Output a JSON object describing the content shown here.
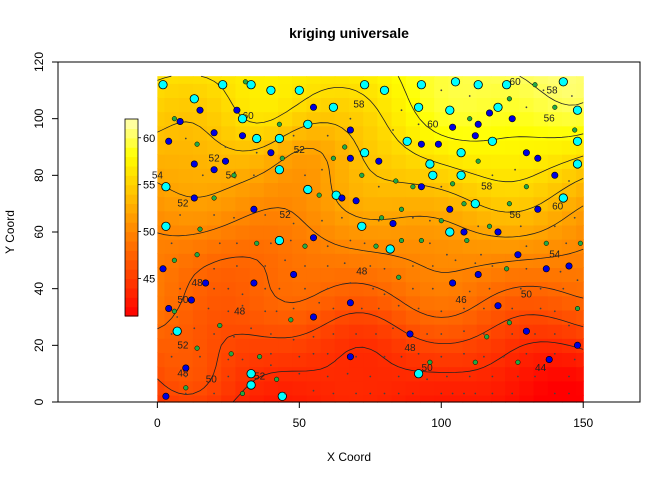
{
  "chart_data": {
    "type": "heatmap",
    "title": "kriging universale",
    "xlabel": "X Coord",
    "ylabel": "Y Coord",
    "xlim": [
      -35,
      170
    ],
    "ylim": [
      0,
      120
    ],
    "x_ticks": [
      "0",
      "50",
      "100",
      "150"
    ],
    "x_tick_values": [
      0,
      50,
      100,
      150
    ],
    "y_ticks": [
      "0",
      "20",
      "40",
      "60",
      "80",
      "100",
      "120"
    ],
    "y_tick_values": [
      0,
      20,
      40,
      60,
      80,
      100,
      120
    ],
    "grid_extent": {
      "x": [
        0,
        150
      ],
      "y": [
        0,
        115
      ]
    },
    "grid_step": 5,
    "value_range": [
      41,
      63
    ],
    "color_scale": {
      "name": "heat",
      "low": "#ff0000",
      "high": "#ffffe6"
    },
    "legend": {
      "position": "left",
      "ticks": [
        "45",
        "50",
        "55",
        "60"
      ],
      "tick_values": [
        45,
        50,
        55,
        60
      ],
      "range": [
        41,
        62
      ]
    },
    "contour_labels": [
      {
        "text": "44",
        "x": 135,
        "y": 12
      },
      {
        "text": "46",
        "x": 107,
        "y": 36
      },
      {
        "text": "48",
        "x": 72,
        "y": 46
      },
      {
        "text": "48",
        "x": 29,
        "y": 32
      },
      {
        "text": "48",
        "x": 89,
        "y": 19
      },
      {
        "text": "48",
        "x": 9,
        "y": 10
      },
      {
        "text": "48",
        "x": 14,
        "y": 42
      },
      {
        "text": "50",
        "x": 9,
        "y": 36
      },
      {
        "text": "50",
        "x": 130,
        "y": 38
      },
      {
        "text": "50",
        "x": 95,
        "y": 12
      },
      {
        "text": "50",
        "x": 19,
        "y": 8
      },
      {
        "text": "52",
        "x": 9,
        "y": 20
      },
      {
        "text": "52",
        "x": 36,
        "y": 9
      },
      {
        "text": "52",
        "x": 9,
        "y": 70
      },
      {
        "text": "52",
        "x": 45,
        "y": 66
      },
      {
        "text": "52",
        "x": 20,
        "y": 86
      },
      {
        "text": "52",
        "x": 50,
        "y": 89
      },
      {
        "text": "54",
        "x": 26,
        "y": 80
      },
      {
        "text": "54",
        "x": 0,
        "y": 80
      },
      {
        "text": "54",
        "x": 140,
        "y": 52
      },
      {
        "text": "56",
        "x": 126,
        "y": 66
      },
      {
        "text": "58",
        "x": 116,
        "y": 76
      },
      {
        "text": "58",
        "x": 71,
        "y": 105
      },
      {
        "text": "58",
        "x": 139,
        "y": 110
      },
      {
        "text": "60",
        "x": 97,
        "y": 98
      },
      {
        "text": "60",
        "x": 141,
        "y": 69
      },
      {
        "text": "60",
        "x": 32,
        "y": 101
      },
      {
        "text": "60",
        "x": 126,
        "y": 113
      },
      {
        "text": "56",
        "x": 138,
        "y": 100
      }
    ],
    "points": {
      "cyan": [
        [
          2,
          112
        ],
        [
          13,
          107
        ],
        [
          23,
          112
        ],
        [
          33,
          112
        ],
        [
          40,
          110
        ],
        [
          50,
          110
        ],
        [
          53,
          98
        ],
        [
          30,
          100
        ],
        [
          35,
          93
        ],
        [
          43,
          93
        ],
        [
          62,
          104
        ],
        [
          73,
          112
        ],
        [
          80,
          110
        ],
        [
          93,
          112
        ],
        [
          105,
          113
        ],
        [
          113,
          112
        ],
        [
          123,
          112
        ],
        [
          143,
          113
        ],
        [
          148,
          103
        ],
        [
          148,
          92
        ],
        [
          148,
          84
        ],
        [
          143,
          72
        ],
        [
          120,
          104
        ],
        [
          103,
          103
        ],
        [
          92,
          104
        ],
        [
          88,
          92
        ],
        [
          107,
          88
        ],
        [
          107,
          80
        ],
        [
          96,
          84
        ],
        [
          97,
          80
        ],
        [
          73,
          88
        ],
        [
          63,
          73
        ],
        [
          53,
          75
        ],
        [
          43,
          82
        ],
        [
          43,
          57
        ],
        [
          3,
          76
        ],
        [
          7,
          25
        ],
        [
          33,
          6
        ],
        [
          92,
          10
        ],
        [
          72,
          62
        ],
        [
          82,
          54
        ],
        [
          103,
          60
        ],
        [
          112,
          70
        ],
        [
          118,
          92
        ],
        [
          3,
          62
        ],
        [
          33,
          10
        ],
        [
          44,
          2
        ]
      ],
      "blue": [
        [
          4,
          92
        ],
        [
          8,
          99
        ],
        [
          15,
          103
        ],
        [
          20,
          95
        ],
        [
          28,
          103
        ],
        [
          55,
          104
        ],
        [
          68,
          96
        ],
        [
          93,
          91
        ],
        [
          99,
          91
        ],
        [
          104,
          97
        ],
        [
          113,
          98
        ],
        [
          117,
          102
        ],
        [
          112,
          94
        ],
        [
          125,
          100
        ],
        [
          130,
          88
        ],
        [
          134,
          86
        ],
        [
          140,
          80
        ],
        [
          134,
          68
        ],
        [
          120,
          60
        ],
        [
          137,
          47
        ],
        [
          127,
          52
        ],
        [
          145,
          48
        ],
        [
          108,
          60
        ],
        [
          103,
          68
        ],
        [
          83,
          63
        ],
        [
          65,
          72
        ],
        [
          55,
          58
        ],
        [
          48,
          45
        ],
        [
          34,
          42
        ],
        [
          2,
          47
        ],
        [
          4,
          33
        ],
        [
          3,
          2
        ],
        [
          10,
          12
        ],
        [
          12,
          36
        ],
        [
          17,
          42
        ],
        [
          34,
          68
        ],
        [
          55,
          30
        ],
        [
          68,
          35
        ],
        [
          68,
          16
        ],
        [
          89,
          24
        ],
        [
          104,
          42
        ],
        [
          113,
          45
        ],
        [
          120,
          34
        ],
        [
          130,
          25
        ],
        [
          148,
          20
        ],
        [
          138,
          15
        ],
        [
          30,
          94
        ],
        [
          13,
          84
        ],
        [
          20,
          82
        ],
        [
          24,
          85
        ],
        [
          40,
          88
        ],
        [
          13,
          72
        ],
        [
          93,
          76
        ],
        [
          78,
          85
        ],
        [
          70,
          71
        ],
        [
          68,
          86
        ]
      ],
      "green": [
        [
          6,
          100
        ],
        [
          31,
          113
        ],
        [
          43,
          98
        ],
        [
          44,
          86
        ],
        [
          62,
          86
        ],
        [
          66,
          90
        ],
        [
          72,
          80
        ],
        [
          84,
          78
        ],
        [
          90,
          76
        ],
        [
          104,
          77
        ],
        [
          113,
          85
        ],
        [
          110,
          100
        ],
        [
          124,
          107
        ],
        [
          133,
          112
        ],
        [
          140,
          104
        ],
        [
          147,
          96
        ],
        [
          130,
          76
        ],
        [
          124,
          70
        ],
        [
          117,
          62
        ],
        [
          108,
          70
        ],
        [
          100,
          64
        ],
        [
          86,
          68
        ],
        [
          79,
          65
        ],
        [
          86,
          57
        ],
        [
          93,
          57
        ],
        [
          109,
          57
        ],
        [
          123,
          47
        ],
        [
          137,
          56
        ],
        [
          149,
          56
        ],
        [
          15,
          61
        ],
        [
          14,
          52
        ],
        [
          6,
          50
        ],
        [
          14,
          19
        ],
        [
          26,
          17
        ],
        [
          36,
          16
        ],
        [
          42,
          8
        ],
        [
          10,
          5
        ],
        [
          6,
          32
        ],
        [
          20,
          72
        ],
        [
          27,
          80
        ],
        [
          57,
          73
        ],
        [
          35,
          56
        ],
        [
          22,
          27
        ],
        [
          30,
          3
        ],
        [
          47,
          29
        ],
        [
          96,
          14
        ],
        [
          112,
          14
        ],
        [
          124,
          28
        ],
        [
          148,
          33
        ],
        [
          127,
          14
        ],
        [
          116,
          23
        ],
        [
          52,
          55
        ],
        [
          77,
          55
        ],
        [
          85,
          44
        ],
        [
          14,
          91
        ]
      ],
      "small": [
        [
          10,
          3
        ],
        [
          20,
          3
        ],
        [
          45,
          3
        ],
        [
          55,
          4
        ],
        [
          62,
          3
        ],
        [
          70,
          3
        ],
        [
          75,
          3
        ],
        [
          80,
          3
        ],
        [
          85,
          3
        ],
        [
          90,
          3
        ],
        [
          100,
          3
        ],
        [
          104,
          3
        ],
        [
          108,
          3
        ],
        [
          112,
          3
        ],
        [
          118,
          3
        ],
        [
          125,
          3
        ],
        [
          140,
          3
        ],
        [
          145,
          3
        ],
        [
          10,
          9
        ],
        [
          25,
          9
        ],
        [
          40,
          13
        ],
        [
          50,
          10
        ],
        [
          60,
          9
        ],
        [
          67,
          10
        ],
        [
          75,
          9
        ],
        [
          85,
          9
        ],
        [
          95,
          8
        ],
        [
          102,
          9
        ],
        [
          110,
          9
        ],
        [
          118,
          9
        ],
        [
          127,
          9
        ],
        [
          133,
          9
        ],
        [
          145,
          9
        ],
        [
          5,
          16
        ],
        [
          15,
          16
        ],
        [
          25,
          15
        ],
        [
          30,
          15
        ],
        [
          40,
          17
        ],
        [
          50,
          16
        ],
        [
          55,
          17
        ],
        [
          60,
          17
        ],
        [
          70,
          16
        ],
        [
          80,
          16
        ],
        [
          86,
          16
        ],
        [
          92,
          17
        ],
        [
          100,
          16
        ],
        [
          108,
          17
        ],
        [
          115,
          16
        ],
        [
          122,
          16
        ],
        [
          130,
          17
        ],
        [
          140,
          17
        ],
        [
          147,
          15
        ],
        [
          5,
          24
        ],
        [
          13,
          26
        ],
        [
          20,
          24
        ],
        [
          27,
          23
        ],
        [
          33,
          26
        ],
        [
          40,
          24
        ],
        [
          48,
          22
        ],
        [
          55,
          23
        ],
        [
          62,
          24
        ],
        [
          70,
          24
        ],
        [
          77,
          24
        ],
        [
          83,
          26
        ],
        [
          95,
          24
        ],
        [
          100,
          24
        ],
        [
          108,
          25
        ],
        [
          115,
          24
        ],
        [
          125,
          24
        ],
        [
          133,
          24
        ],
        [
          140,
          24
        ],
        [
          145,
          27
        ],
        [
          7,
          30
        ],
        [
          18,
          33
        ],
        [
          25,
          32
        ],
        [
          30,
          34
        ],
        [
          38,
          32
        ],
        [
          42,
          32
        ],
        [
          48,
          33
        ],
        [
          57,
          35
        ],
        [
          62,
          33
        ],
        [
          72,
          33
        ],
        [
          78,
          33
        ],
        [
          85,
          34
        ],
        [
          92,
          33
        ],
        [
          100,
          32
        ],
        [
          108,
          33
        ],
        [
          115,
          33
        ],
        [
          125,
          33
        ],
        [
          135,
          33
        ],
        [
          140,
          32
        ],
        [
          8,
          40
        ],
        [
          20,
          40
        ],
        [
          25,
          40
        ],
        [
          30,
          38
        ],
        [
          38,
          40
        ],
        [
          43,
          40
        ],
        [
          52,
          40
        ],
        [
          60,
          40
        ],
        [
          68,
          42
        ],
        [
          76,
          40
        ],
        [
          80,
          38
        ],
        [
          90,
          40
        ],
        [
          97,
          40
        ],
        [
          110,
          39
        ],
        [
          117,
          40
        ],
        [
          128,
          40
        ],
        [
          135,
          40
        ],
        [
          143,
          40
        ],
        [
          20,
          47
        ],
        [
          28,
          48
        ],
        [
          38,
          48
        ],
        [
          45,
          50
        ],
        [
          52,
          48
        ],
        [
          60,
          48
        ],
        [
          66,
          49
        ],
        [
          75,
          48
        ],
        [
          80,
          47
        ],
        [
          90,
          48
        ],
        [
          97,
          48
        ],
        [
          105,
          50
        ],
        [
          112,
          49
        ],
        [
          118,
          48
        ],
        [
          130,
          47
        ],
        [
          142,
          46
        ],
        [
          148,
          43
        ],
        [
          5,
          56
        ],
        [
          22,
          56
        ],
        [
          28,
          56
        ],
        [
          40,
          56
        ],
        [
          47,
          57
        ],
        [
          60,
          55
        ],
        [
          68,
          57
        ],
        [
          73,
          56
        ],
        [
          96,
          56
        ],
        [
          102,
          52
        ],
        [
          114,
          52
        ],
        [
          130,
          55
        ],
        [
          144,
          56
        ],
        [
          8,
          66
        ],
        [
          20,
          66
        ],
        [
          27,
          65
        ],
        [
          38,
          66
        ],
        [
          48,
          63
        ],
        [
          58,
          64
        ],
        [
          65,
          65
        ],
        [
          78,
          64
        ],
        [
          90,
          65
        ],
        [
          96,
          64
        ],
        [
          113,
          62
        ],
        [
          128,
          62
        ],
        [
          140,
          62
        ],
        [
          147,
          65
        ],
        [
          16,
          80
        ],
        [
          34,
          80
        ],
        [
          52,
          80
        ],
        [
          58,
          82
        ],
        [
          78,
          76
        ],
        [
          100,
          76
        ],
        [
          118,
          80
        ],
        [
          126,
          82
        ],
        [
          145,
          78
        ],
        [
          10,
          93
        ],
        [
          24,
          90
        ],
        [
          35,
          88
        ],
        [
          48,
          94
        ],
        [
          60,
          94
        ],
        [
          68,
          100
        ],
        [
          83,
          96
        ],
        [
          86,
          103
        ],
        [
          92,
          98
        ],
        [
          100,
          110
        ],
        [
          110,
          108
        ],
        [
          130,
          104
        ],
        [
          136,
          110
        ],
        [
          146,
          108
        ]
      ]
    }
  }
}
